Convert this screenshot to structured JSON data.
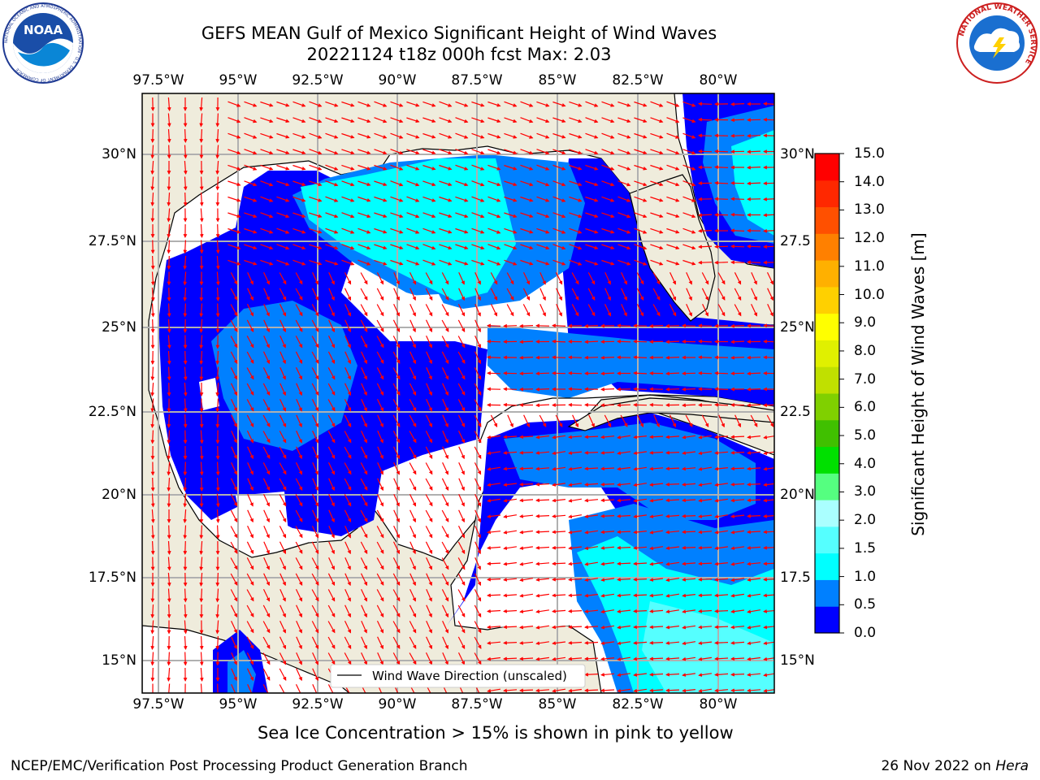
{
  "header": {
    "title_line1": "GEFS MEAN Gulf of Mexico Significant Height of Wind Waves",
    "title_line2": "20221124 t18z 000h fcst   Max: 2.03"
  },
  "logos": {
    "noaa_text": "NOAA",
    "noaa_ring_text": "NATIONAL OCEANIC AND ATMOSPHERIC ADMINISTRATION · U.S. DEPARTMENT OF COMMERCE",
    "nws_ring_text": "NATIONAL WEATHER SERVICE"
  },
  "map": {
    "lon_labels": [
      "97.5°W",
      "95°W",
      "92.5°W",
      "90°W",
      "87.5°W",
      "85°W",
      "82.5°W",
      "80°W"
    ],
    "lat_labels_left": [
      "30°N",
      "27.5°N",
      "25°N",
      "22.5°N",
      "20°N",
      "17.5°N",
      "15°N"
    ],
    "lat_labels_right": [
      "30°N",
      "27.5",
      "25°N",
      "22.5",
      "20°N",
      "17.5",
      "15°N"
    ],
    "legend_label": "Wind Wave Direction (unscaled)",
    "colors": {
      "land": "#efecdc",
      "grid": "#b0b0b0",
      "arrow": "#ff0000"
    }
  },
  "colorbar": {
    "label": "Significant Height of Wind Waves [m]",
    "ticks": [
      "15.0",
      "14.0",
      "13.0",
      "12.0",
      "11.0",
      "10.0",
      "9.0",
      "8.0",
      "7.0",
      "6.0",
      "5.0",
      "4.0",
      "3.0",
      "2.0",
      "1.5",
      "1.0",
      "0.5",
      "0.0"
    ],
    "colors_bottom_to_top": [
      "#0000ff",
      "#0080ff",
      "#00ffff",
      "#55ffff",
      "#aaffff",
      "#55ff80",
      "#00e000",
      "#40c000",
      "#80d000",
      "#c0e000",
      "#e0f000",
      "#ffff00",
      "#ffd000",
      "#ffb000",
      "#ff8000",
      "#ff5000",
      "#ff2800",
      "#ff0000"
    ]
  },
  "footer": {
    "sea_ice_note": "Sea Ice Concentration > 15% is shown in pink to yellow",
    "producer": "NCEP/EMC/Verification Post Processing Product Generation Branch",
    "date_text": "26 Nov 2022 on ",
    "machine": "Hera"
  }
}
